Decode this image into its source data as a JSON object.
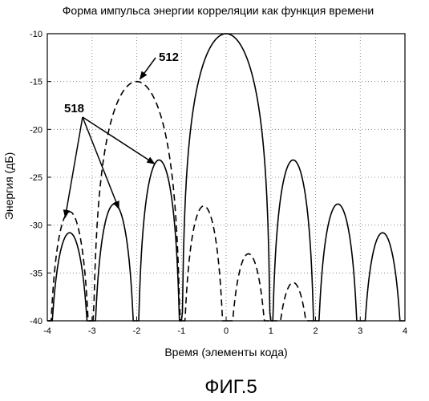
{
  "chart_data": {
    "type": "line",
    "title": "Форма импульса энергии корреляции как функция времени",
    "xlabel": "Время (элементы кода)",
    "ylabel": "Энергия (дБ)",
    "xlim": [
      -4,
      4
    ],
    "ylim": [
      -40,
      -10
    ],
    "xticks": [
      "-4",
      "-3",
      "-2",
      "-1",
      "0",
      "1",
      "2",
      "3",
      "4"
    ],
    "yticks": [
      "-10",
      "-15",
      "-20",
      "-25",
      "-30",
      "-35",
      "-40"
    ],
    "grid": "dotted",
    "series": [
      {
        "line_style": "solid",
        "lobes": [
          {
            "x_start": -4.0,
            "x_end": -3.0,
            "peak": -30.8
          },
          {
            "x_start": -3.0,
            "x_end": -2.0,
            "peak": -27.8
          },
          {
            "x_start": -2.0,
            "x_end": -1.0,
            "peak": -23.2
          },
          {
            "x_start": -1.0,
            "x_end": 1.0,
            "peak": -10.0
          },
          {
            "x_start": 1.0,
            "x_end": 2.0,
            "peak": -23.2
          },
          {
            "x_start": 2.0,
            "x_end": 3.0,
            "peak": -27.8
          },
          {
            "x_start": 3.0,
            "x_end": 4.0,
            "peak": -30.8
          }
        ]
      },
      {
        "line_style": "dashed",
        "lobes": [
          {
            "x_start": -4.0,
            "x_end": -3.0,
            "peak": -28.6
          },
          {
            "x_start": -3.0,
            "x_end": -1.0,
            "peak": -15.0
          },
          {
            "x_start": -1.0,
            "x_end": 0.0,
            "peak": -28.0
          },
          {
            "x_start": 0.0,
            "x_end": 1.0,
            "peak": -33.0
          },
          {
            "x_start": 1.0,
            "x_end": 2.0,
            "peak": -36.0
          }
        ]
      }
    ],
    "annotations": [
      {
        "text": "512",
        "target": {
          "x": -2.0,
          "y": -15.0
        }
      },
      {
        "text": "518",
        "targets": [
          {
            "x": -3.6,
            "y": -29.2
          },
          {
            "x": -2.4,
            "y": -28.3
          },
          {
            "x": -1.6,
            "y": -23.6
          }
        ]
      }
    ]
  },
  "figure_label": "ФИГ.5"
}
